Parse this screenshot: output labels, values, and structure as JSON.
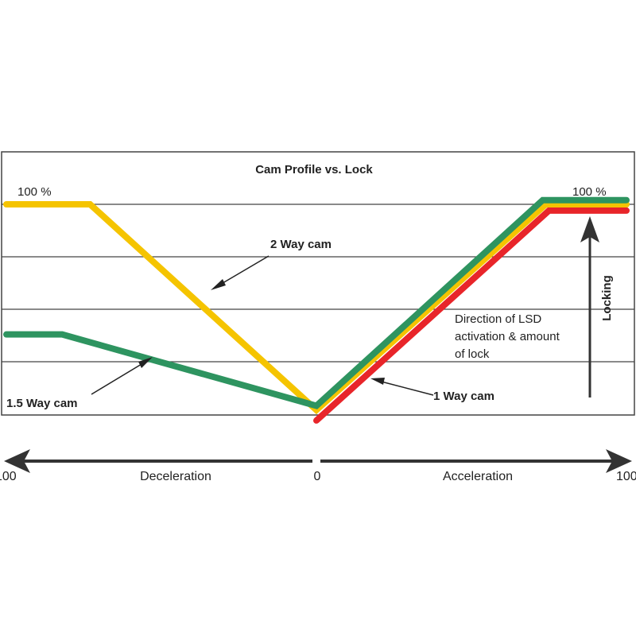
{
  "chart_data": {
    "type": "line",
    "title": "Cam Profile vs. Lock",
    "top_left_label": "100 %",
    "top_right_label": "100 %",
    "x_axis": {
      "left_label": "100",
      "center_label": "0",
      "right_label": "100",
      "left_direction": "Deceleration",
      "right_direction": "Acceleration",
      "range": [
        -100,
        100
      ]
    },
    "y_range": [
      0,
      100
    ],
    "grid": true,
    "locking_label": "Locking",
    "direction_note": [
      "Direction of LSD",
      "activation & amount",
      "of lock"
    ],
    "series": [
      {
        "name": "2 Way cam",
        "color": "#f5c400",
        "x": [
          -100,
          -73,
          0,
          74,
          100
        ],
        "y": [
          100,
          100,
          2,
          100,
          100
        ]
      },
      {
        "name": "1.5 Way cam",
        "color": "#2e9460",
        "x": [
          -100,
          -82,
          0,
          73,
          100
        ],
        "y": [
          38,
          38,
          4,
          102,
          102
        ]
      },
      {
        "name": "1 Way cam",
        "color": "#e8252a",
        "x": [
          0,
          75,
          100
        ],
        "y": [
          -3,
          97,
          97
        ]
      }
    ],
    "annotations": {
      "two_way": "2 Way cam",
      "one_five_way": "1.5 Way cam",
      "one_way": "1 Way cam"
    }
  }
}
